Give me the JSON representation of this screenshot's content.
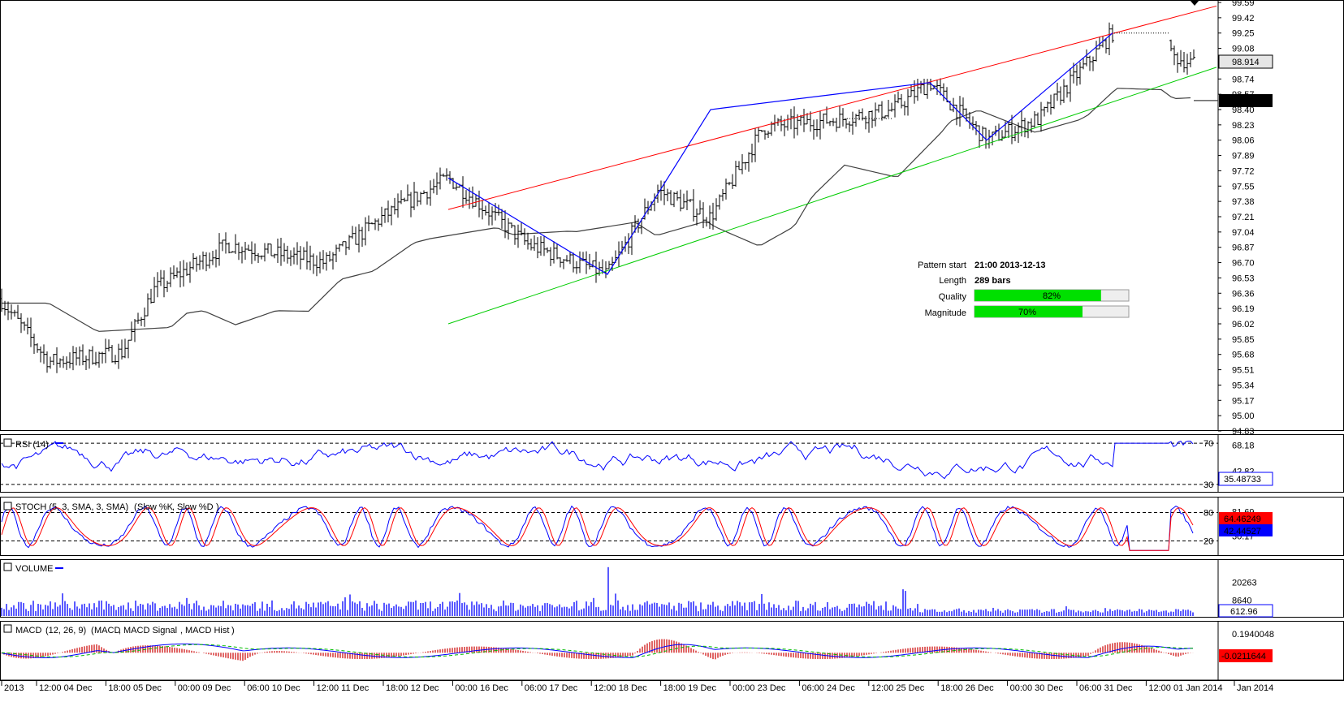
{
  "chart_data": [
    {
      "type": "candlestick",
      "panel": "price",
      "price_ticks": [
        "99.59",
        "99.42",
        "99.25",
        "99.08",
        "98.91",
        "98.74",
        "98.57",
        "98.40",
        "98.23",
        "98.06",
        "97.89",
        "97.72",
        "97.55",
        "97.38",
        "97.21",
        "97.04",
        "96.87",
        "96.70",
        "96.53",
        "96.36",
        "96.19",
        "96.02",
        "95.85",
        "95.68",
        "95.51",
        "95.34",
        "95.17",
        "95.00",
        "94.83"
      ],
      "ylim": [
        94.83,
        99.59
      ],
      "current_price": "98.914",
      "ma_value": "98.488",
      "time_labels": [
        "2013",
        "12:00 04 Dec",
        "18:00 05 Dec",
        "00:00 09 Dec",
        "06:00 10 Dec",
        "12:00 11 Dec",
        "18:00 12 Dec",
        "00:00 16 Dec",
        "06:00 17 Dec",
        "12:00 18 Dec",
        "18:00 19 Dec",
        "00:00 23 Dec",
        "06:00 24 Dec",
        "12:00 25 Dec",
        "18:00 26 Dec",
        "00:00 30 Dec",
        "06:00 31 Dec",
        "12:00 01 Jan 2014",
        "Jan 2014"
      ],
      "channel": {
        "resistance": [
          [
            0.0,
            97.29
          ],
          [
            1.0,
            99.55
          ]
        ],
        "support": [
          [
            0.0,
            96.02
          ],
          [
            1.0,
            98.87
          ]
        ]
      },
      "pattern_zigzag": [
        97.64,
        96.57,
        98.4,
        98.7,
        98.06,
        99.25
      ],
      "pattern_info": {
        "start_label": "Pattern start",
        "start_value": "21:00 2013-12-13",
        "length_label": "Length",
        "length_value": "289 bars",
        "quality_label": "Quality",
        "quality_value": 82,
        "quality_text": "82%",
        "magnitude_label": "Magnitude",
        "magnitude_value": 70,
        "magnitude_text": "70%"
      },
      "colors": {
        "resistance": "#ff0000",
        "support": "#00cc00",
        "zigzag": "#0000ff",
        "ma": "#404040",
        "bars": "#000000",
        "bar_fill": "#00e000"
      }
    },
    {
      "type": "line",
      "panel": "rsi",
      "title": "RSI (14)",
      "levels": [
        "70",
        "30"
      ],
      "ticks": [
        "68.18",
        "42.82"
      ],
      "ylim": [
        26,
        74
      ],
      "current": "35.48733"
    },
    {
      "type": "line",
      "panel": "stoch",
      "title": "STOCH (5, 3, SMA, 3, SMA)",
      "series_names": [
        "Slow %K",
        "Slow %D"
      ],
      "levels": [
        "80",
        "20"
      ],
      "ticks": [
        "81.69",
        "30.17"
      ],
      "ylim": [
        -3,
        103
      ],
      "current_k": "64.46249",
      "current_d": "42.44527"
    },
    {
      "type": "bar",
      "panel": "volume",
      "title": "VOLUME",
      "ticks": [
        "20263",
        "8640"
      ],
      "ylim": [
        0,
        32000
      ],
      "current": "612.96"
    },
    {
      "type": "line",
      "panel": "macd",
      "title": "MACD",
      "params": "(12, 26, 9)",
      "series_names": [
        "MACD",
        "MACD Signal",
        "MACD Hist"
      ],
      "ticks": [
        "0.1940048"
      ],
      "ylim": [
        -0.25,
        0.28
      ],
      "current": "-0.0211644"
    }
  ]
}
